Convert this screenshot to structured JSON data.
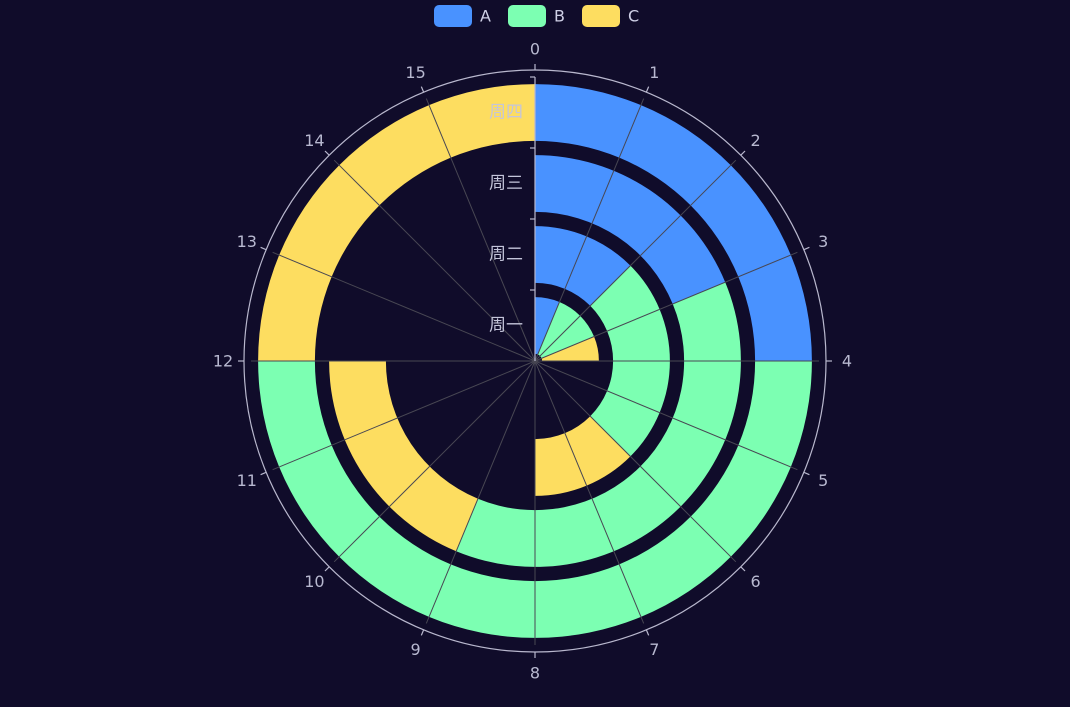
{
  "chart_data": {
    "type": "polar-stacked-bar",
    "angle_axis": {
      "min": 0,
      "max": 16,
      "tick_labels": [
        "0",
        "1",
        "2",
        "3",
        "4",
        "5",
        "6",
        "7",
        "8",
        "9",
        "10",
        "11",
        "12",
        "13",
        "14",
        "15"
      ]
    },
    "radius_axis": {
      "categories": [
        "周一",
        "周二",
        "周三",
        "周四"
      ]
    },
    "series": [
      {
        "name": "A",
        "color": "#4992ff",
        "values": [
          1,
          2,
          3,
          4
        ]
      },
      {
        "name": "B",
        "color": "#7cffb2",
        "values": [
          2,
          4,
          6,
          8
        ]
      },
      {
        "name": "C",
        "color": "#fddd60",
        "values": [
          1,
          2,
          3,
          4
        ]
      }
    ],
    "legend": {
      "position": "top-center"
    }
  },
  "background_color": "#100c2a"
}
